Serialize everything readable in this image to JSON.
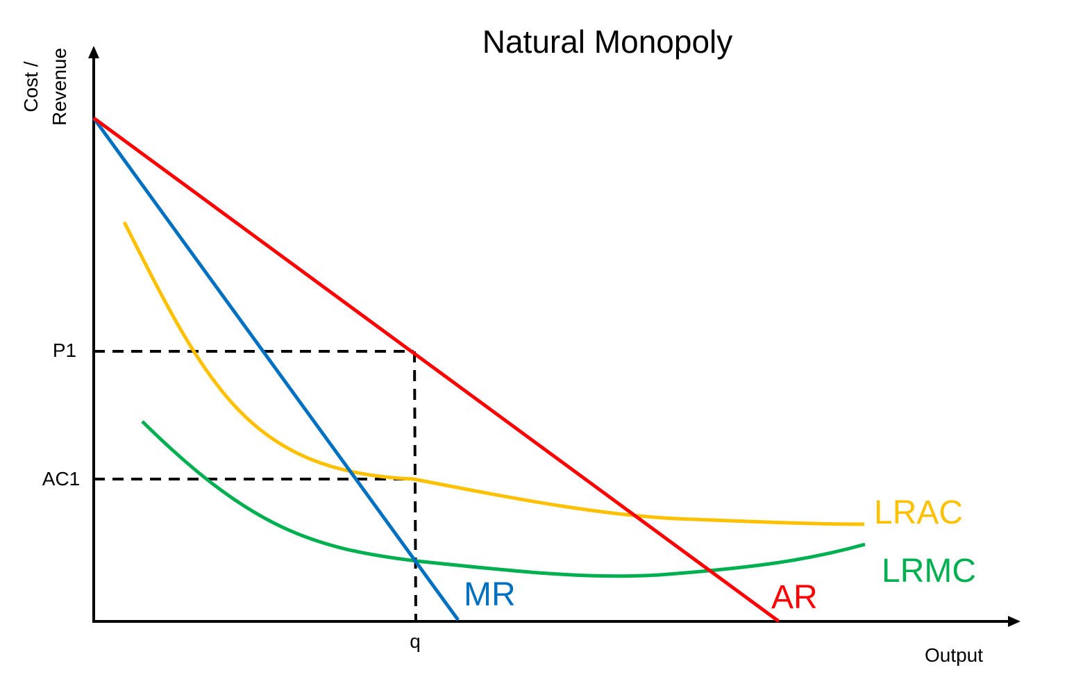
{
  "title": "Natural Monopoly",
  "axes": {
    "y_label_line1": "Cost /",
    "y_label_line2": "Revenue",
    "x_label": "Output"
  },
  "markers": {
    "price": "P1",
    "avg_cost": "AC1",
    "quantity": "q"
  },
  "curves": {
    "mr": {
      "label": "MR",
      "color": "#0070c0"
    },
    "ar": {
      "label": "AR",
      "color": "#ff0000"
    },
    "lrac": {
      "label": "LRAC",
      "color": "#ffc000"
    },
    "lrmc": {
      "label": "LRMC",
      "color": "#00b050"
    }
  },
  "guide_color": "#000000"
}
